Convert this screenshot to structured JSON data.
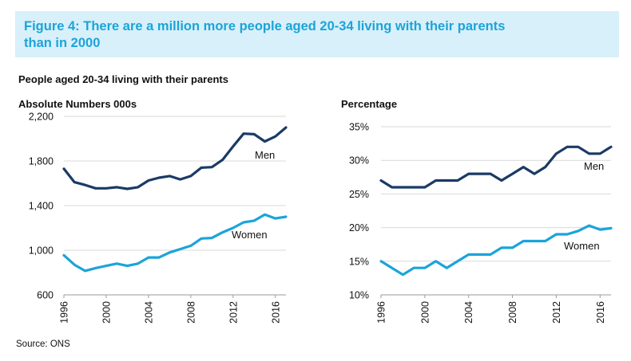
{
  "banner": {
    "title_line1": "Figure 4: There are a million more people aged 20-34 living with their parents",
    "title_line2": "than in 2000"
  },
  "subtitle": "People aged 20-34 living with their parents",
  "source": "Source: ONS",
  "colors": {
    "banner_bg": "#d8f0fa",
    "banner_text": "#1ba4da",
    "men": "#1b3a66",
    "women": "#1ba4da",
    "grid": "#d9d9d9"
  },
  "chart_data": [
    {
      "type": "line",
      "title": "Absolute Numbers 000s",
      "x": [
        1996,
        1997,
        1998,
        1999,
        2000,
        2001,
        2002,
        2003,
        2004,
        2005,
        2006,
        2007,
        2008,
        2009,
        2010,
        2011,
        2012,
        2013,
        2014,
        2015,
        2016,
        2017
      ],
      "xticks": [
        "1996",
        "2000",
        "2004",
        "2008",
        "2012",
        "2016"
      ],
      "yticks": [
        "600",
        "1,000",
        "1,400",
        "1,800",
        "2,200"
      ],
      "ylim": [
        600,
        2200
      ],
      "grid": true,
      "series": [
        {
          "name": "Men",
          "values": [
            1730,
            1610,
            1585,
            1555,
            1555,
            1565,
            1550,
            1565,
            1625,
            1650,
            1665,
            1635,
            1665,
            1740,
            1745,
            1810,
            1930,
            2045,
            2040,
            1975,
            2020,
            2100
          ]
        },
        {
          "name": "Women",
          "values": [
            955,
            870,
            815,
            840,
            860,
            880,
            860,
            880,
            935,
            935,
            980,
            1010,
            1040,
            1105,
            1110,
            1160,
            1200,
            1250,
            1265,
            1320,
            1285,
            1300
          ]
        }
      ]
    },
    {
      "type": "line",
      "title": "Percentage",
      "x": [
        1996,
        1997,
        1998,
        1999,
        2000,
        2001,
        2002,
        2003,
        2004,
        2005,
        2006,
        2007,
        2008,
        2009,
        2010,
        2011,
        2012,
        2013,
        2014,
        2015,
        2016,
        2017
      ],
      "xticks": [
        "1996",
        "2000",
        "2004",
        "2008",
        "2012",
        "2016"
      ],
      "yticks": [
        "10%",
        "15%",
        "20%",
        "25%",
        "30%",
        "35%"
      ],
      "ylim": [
        10,
        35
      ],
      "grid": true,
      "series": [
        {
          "name": "Men",
          "values": [
            27,
            26,
            26,
            26,
            26,
            27,
            27,
            27,
            28,
            28,
            28,
            27,
            28,
            29,
            28,
            29,
            31,
            32,
            32,
            31,
            31,
            32
          ]
        },
        {
          "name": "Women",
          "values": [
            15,
            14,
            13,
            14,
            14,
            15,
            14,
            15,
            16,
            16,
            16,
            17,
            17,
            18,
            18,
            18,
            19,
            19,
            19.5,
            20.3,
            19.7,
            19.9
          ]
        }
      ]
    }
  ]
}
